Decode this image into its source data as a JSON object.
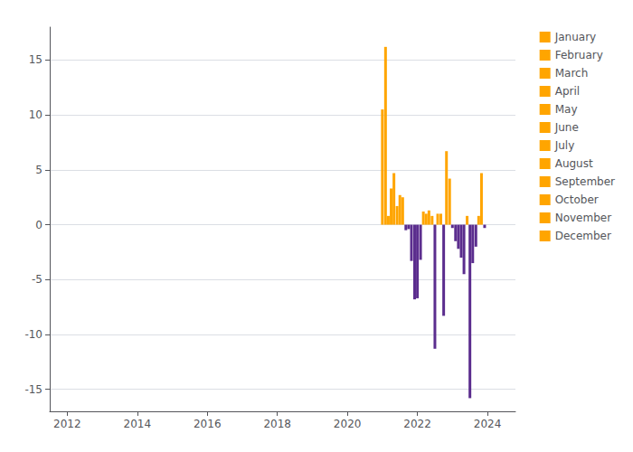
{
  "chart_data": {
    "type": "bar",
    "xlim": [
      2011.5,
      2024.8
    ],
    "xticks": [
      2012,
      2014,
      2016,
      2018,
      2020,
      2022,
      2024
    ],
    "ylim": [
      -17,
      18
    ],
    "yticks": [
      -15,
      -10,
      -5,
      0,
      5,
      10,
      15
    ],
    "grid": true,
    "legend": "right",
    "series": [
      {
        "name": "January",
        "color": "#FFA500",
        "x": [
          2021.0,
          2022.0,
          2023.0
        ],
        "values": [
          10.5,
          -6.7,
          -0.3
        ],
        "colors": [
          "#FFA500",
          "#5B2D8E",
          "#5B2D8E"
        ]
      },
      {
        "name": "February",
        "color": "#FFA500",
        "x": [
          2021.09,
          2022.09,
          2023.09
        ],
        "values": [
          16.2,
          -3.2,
          -1.5
        ],
        "colors": [
          "#FFA500",
          "#5B2D8E",
          "#5B2D8E"
        ]
      },
      {
        "name": "March",
        "color": "#FFA500",
        "x": [
          2021.17,
          2022.17,
          2023.17
        ],
        "values": [
          0.8,
          1.2,
          -2.2
        ],
        "colors": [
          "#FFA500",
          "#FFA500",
          "#5B2D8E"
        ]
      },
      {
        "name": "April",
        "color": "#FFA500",
        "x": [
          2021.25,
          2022.25,
          2023.25
        ],
        "values": [
          3.3,
          1.0,
          -3.0
        ],
        "colors": [
          "#FFA500",
          "#FFA500",
          "#5B2D8E"
        ]
      },
      {
        "name": "May",
        "color": "#FFA500",
        "x": [
          2021.33,
          2022.33,
          2023.33
        ],
        "values": [
          4.7,
          1.3,
          -4.5
        ],
        "colors": [
          "#FFA500",
          "#FFA500",
          "#5B2D8E"
        ]
      },
      {
        "name": "June",
        "color": "#FFA500",
        "x": [
          2021.42,
          2022.42,
          2023.42
        ],
        "values": [
          1.7,
          0.8,
          0.8
        ],
        "colors": [
          "#FFA500",
          "#FFA500",
          "#FFA500"
        ]
      },
      {
        "name": "July",
        "color": "#FFA500",
        "x": [
          2021.5,
          2022.5,
          2023.5
        ],
        "values": [
          2.7,
          -11.3,
          -15.8
        ],
        "colors": [
          "#FFA500",
          "#5B2D8E",
          "#5B2D8E"
        ]
      },
      {
        "name": "August",
        "color": "#FFA500",
        "x": [
          2021.58,
          2022.58,
          2023.58
        ],
        "values": [
          2.5,
          1.0,
          -3.5
        ],
        "colors": [
          "#FFA500",
          "#FFA500",
          "#5B2D8E"
        ]
      },
      {
        "name": "September",
        "color": "#FFA500",
        "x": [
          2021.67,
          2022.67,
          2023.67
        ],
        "values": [
          -0.5,
          1.0,
          -2.0
        ],
        "colors": [
          "#5B2D8E",
          "#FFA500",
          "#5B2D8E"
        ]
      },
      {
        "name": "October",
        "color": "#FFA500",
        "x": [
          2021.75,
          2022.75,
          2023.75
        ],
        "values": [
          -0.4,
          -8.3,
          0.8
        ],
        "colors": [
          "#5B2D8E",
          "#5B2D8E",
          "#FFA500"
        ]
      },
      {
        "name": "November",
        "color": "#FFA500",
        "x": [
          2021.83,
          2022.83,
          2023.83
        ],
        "values": [
          -3.3,
          6.7,
          4.7
        ],
        "colors": [
          "#5B2D8E",
          "#FFA500",
          "#FFA500"
        ]
      },
      {
        "name": "December",
        "color": "#FFA500",
        "x": [
          2021.92,
          2022.92,
          2023.92
        ],
        "values": [
          -6.8,
          4.2,
          -0.3
        ],
        "colors": [
          "#5B2D8E",
          "#FFA500",
          "#5B2D8E"
        ]
      }
    ]
  }
}
